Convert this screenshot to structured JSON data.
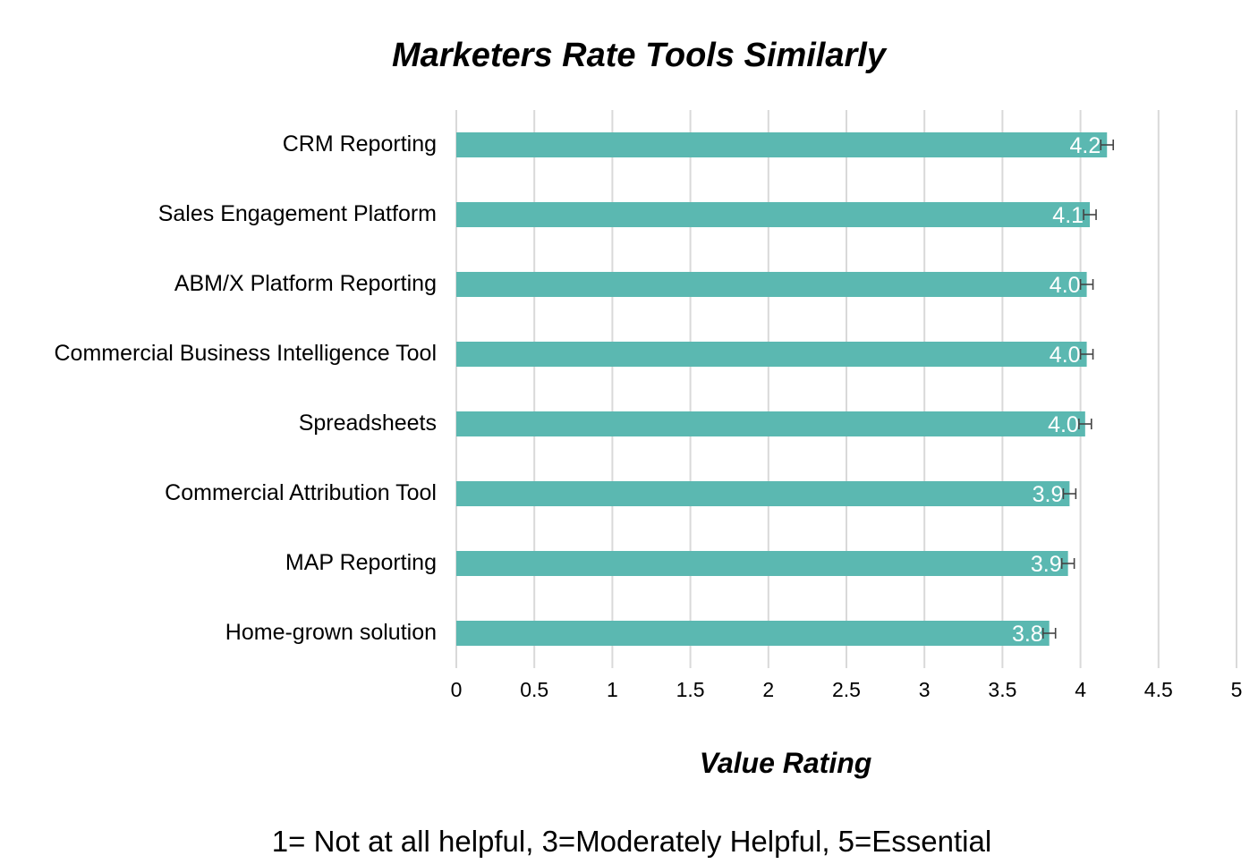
{
  "chart_data": {
    "type": "bar",
    "orientation": "horizontal",
    "title": "Marketers Rate Tools Similarly",
    "xlabel": "Value Rating",
    "ylabel": "",
    "note": "1= Not at all helpful,  3=Moderately Helpful,  5=Essential",
    "categories": [
      "CRM Reporting",
      "Sales Engagement Platform",
      "ABM/X Platform Reporting",
      "Commercial Business Intelligence Tool",
      "Spreadsheets",
      "Commercial Attribution Tool",
      "MAP Reporting",
      "Home-grown solution"
    ],
    "values": [
      4.17,
      4.06,
      4.04,
      4.04,
      4.03,
      3.93,
      3.92,
      3.8
    ],
    "data_labels": [
      "4.2",
      "4.1",
      "4.0",
      "4.0",
      "4.0",
      "3.9",
      "3.9",
      "3.8"
    ],
    "error": [
      0.04,
      0.04,
      0.04,
      0.04,
      0.04,
      0.04,
      0.04,
      0.04
    ],
    "xlim": [
      0,
      5
    ],
    "xticks": [
      0,
      0.5,
      1,
      1.5,
      2,
      2.5,
      3,
      3.5,
      4,
      4.5,
      5
    ],
    "xtick_labels": [
      "0",
      "0.5",
      "1",
      "1.5",
      "2",
      "2.5",
      "3",
      "3.5",
      "4",
      "4.5",
      "5"
    ],
    "grid": "vertical",
    "bar_color": "#5bb8b1",
    "legend": "none"
  }
}
